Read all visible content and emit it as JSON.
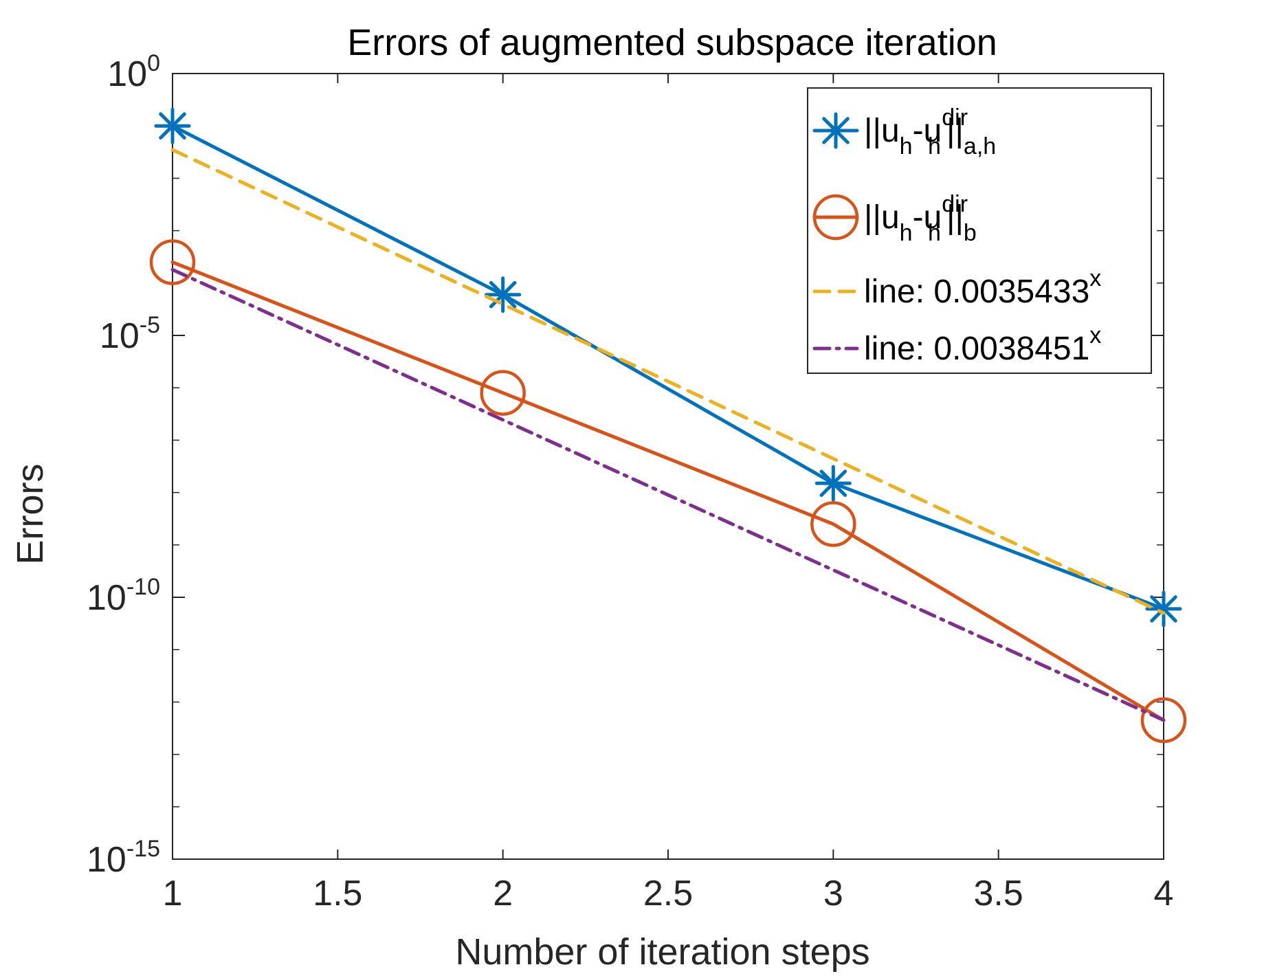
{
  "chart_data": {
    "type": "line",
    "title": "Errors of augmented subspace iteration",
    "xlabel": "Number of iteration steps",
    "ylabel": "Errors",
    "yscale": "log",
    "xlim": [
      1,
      4
    ],
    "ylim": [
      1e-15,
      1
    ],
    "x_ticks": [
      1,
      1.5,
      2,
      2.5,
      3,
      3.5,
      4
    ],
    "x_tick_labels": [
      "1",
      "1.5",
      "2",
      "2.5",
      "3",
      "3.5",
      "4"
    ],
    "y_ticks": [
      1e-15,
      1e-10,
      1e-05,
      1
    ],
    "y_tick_labels": [
      {
        "base": "10",
        "exp": "-15"
      },
      {
        "base": "10",
        "exp": "-10"
      },
      {
        "base": "10",
        "exp": "-5"
      },
      {
        "base": "10",
        "exp": "0"
      }
    ],
    "grid": false,
    "legend_position": "top-right",
    "series": [
      {
        "legend": {
          "main": "||u",
          "s1": "h",
          "mid": "-u",
          "sup": "dir",
          "s2": "h",
          "tail": "||",
          "s3": "a,h"
        },
        "x": [
          1,
          2,
          3,
          4
        ],
        "values": [
          0.1,
          6e-05,
          1.5e-08,
          6e-11
        ],
        "color": "#0072BD",
        "marker": "asterisk",
        "line_style": "solid"
      },
      {
        "legend": {
          "main": "||u",
          "s1": "h",
          "mid": "-u",
          "sup": "dir",
          "s2": "h",
          "tail": "||",
          "s3": "b"
        },
        "x": [
          1,
          2,
          3,
          4
        ],
        "values": [
          0.00025,
          8e-07,
          2.5e-09,
          4.5e-13
        ],
        "color": "#D95319",
        "marker": "circle",
        "line_style": "solid"
      },
      {
        "legend": {
          "main": "line: 0.0035433",
          "sup": "x"
        },
        "x": [
          1,
          4
        ],
        "values": [
          0.035,
          5e-11
        ],
        "color": "#EDB120",
        "marker": "none",
        "line_style": "dashed"
      },
      {
        "legend": {
          "main": "line: 0.0038451",
          "sup": "x"
        },
        "x": [
          1,
          4
        ],
        "values": [
          0.00018,
          4.5e-13
        ],
        "color": "#7E2F8E",
        "marker": "none",
        "line_style": "dashdot"
      }
    ]
  }
}
